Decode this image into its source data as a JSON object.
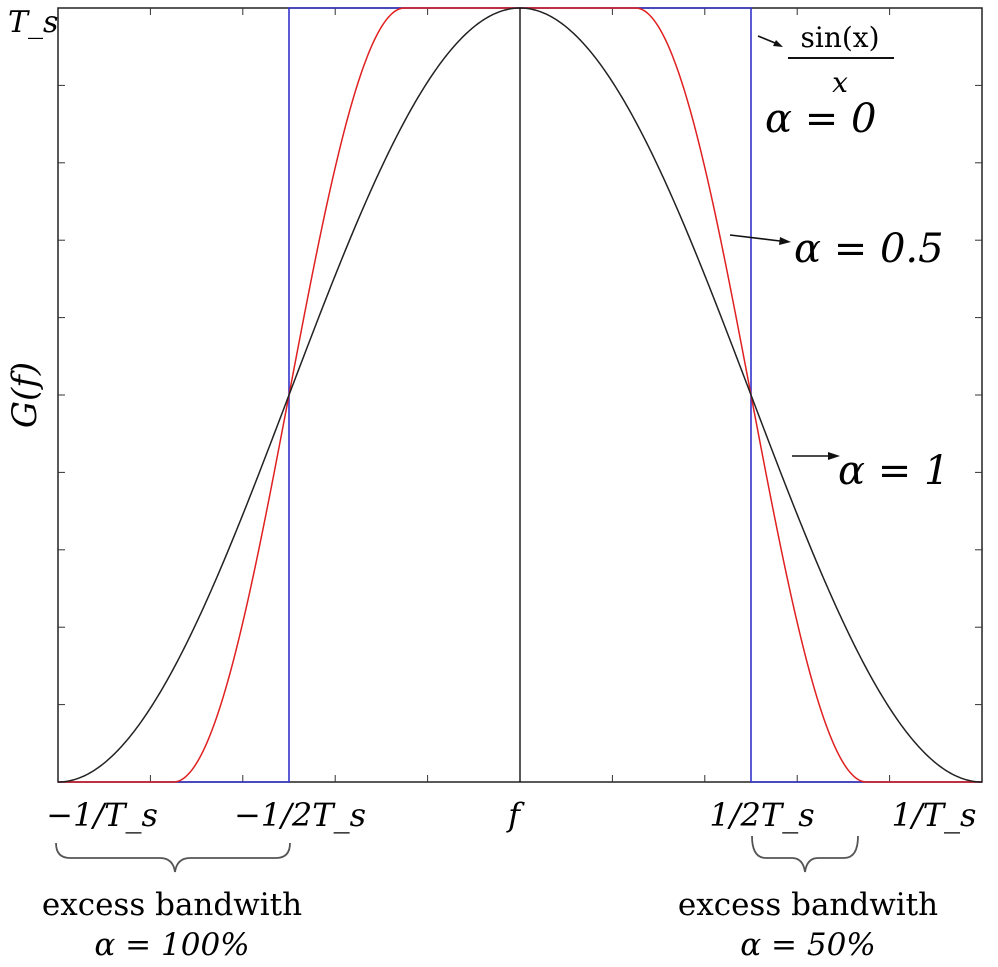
{
  "chart_data": {
    "type": "line",
    "title": "",
    "xlabel": "f",
    "ylabel": "G(f)",
    "xlim": [
      -1.0,
      1.0
    ],
    "ylim": [
      0,
      1
    ],
    "grid": false,
    "y_top_tick_label": "T_s",
    "x_tick_labels": [
      {
        "x": -1.0,
        "label": "−1/T_s"
      },
      {
        "x": -0.5,
        "label": "−1/2T_s"
      },
      {
        "x": 0.0,
        "label": "f"
      },
      {
        "x": 0.5,
        "label": "1/2T_s"
      },
      {
        "x": 1.0,
        "label": "1/T_s"
      }
    ],
    "series": [
      {
        "alpha": 0,
        "color": "#3333cc",
        "x": [
          -1.0,
          -0.5,
          -0.5,
          0.5,
          0.5,
          1.0
        ],
        "y": [
          0,
          0,
          1,
          1,
          0,
          0
        ]
      },
      {
        "alpha": 0.5,
        "color": "#e02020",
        "x": [
          -1.0,
          -0.75,
          -0.25,
          0.25,
          0.75,
          1.0
        ],
        "y": [
          0,
          0,
          1,
          1,
          0,
          0
        ],
        "shape": "raised-cosine"
      },
      {
        "alpha": 1,
        "color": "#222222",
        "x": [
          -1.0,
          -0.5,
          0.0,
          0.5,
          1.0
        ],
        "y": [
          0,
          0.5,
          1,
          0.5,
          0
        ],
        "shape": "raised-cosine"
      }
    ],
    "annotations": {
      "sinc_numerator": "sin(x)",
      "sinc_denominator": "x",
      "alpha0": "α = 0",
      "alpha05": "α = 0.5",
      "alpha1": "α = 1",
      "excess_left_text": "excess bandwith",
      "excess_left_value": "α = 100%",
      "excess_right_text": "excess bandwith",
      "excess_right_value": "α = 50%"
    }
  }
}
